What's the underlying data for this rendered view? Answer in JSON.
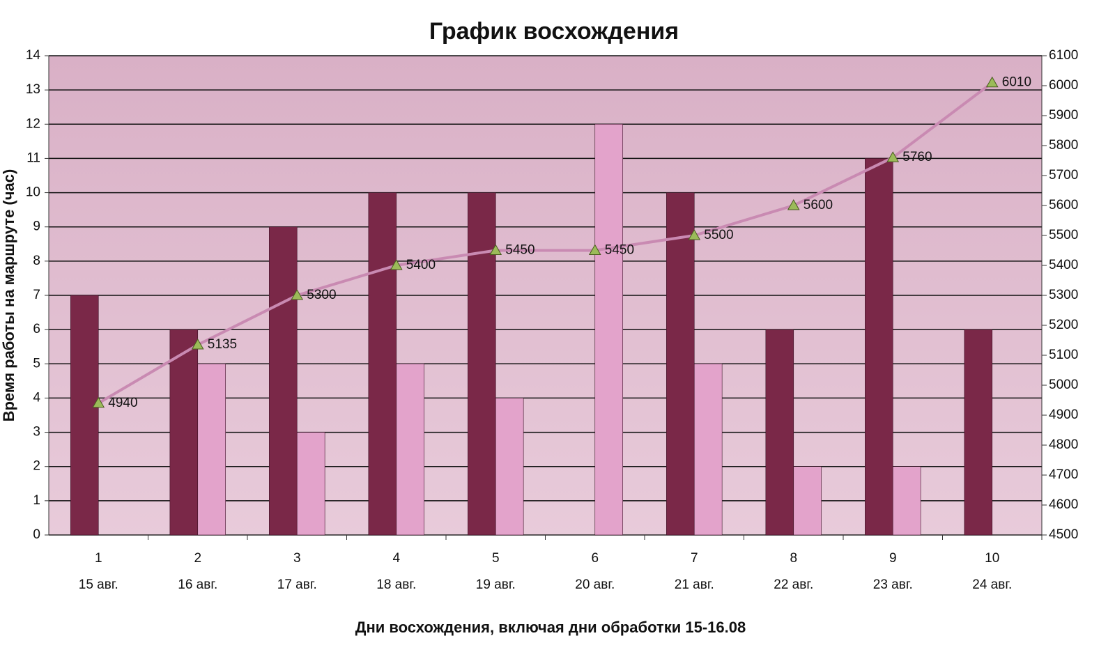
{
  "chart_data": {
    "type": "bar-line",
    "title": "График восхождения",
    "x_label": "Дни восхождения, включая дни обработки 15-16.08",
    "y_label": "Время работы на маршруте  (час)",
    "categories": [
      "1",
      "2",
      "3",
      "4",
      "5",
      "6",
      "7",
      "8",
      "9",
      "10"
    ],
    "category_dates": [
      "15 авг.",
      "16 авг.",
      "17 авг.",
      "18 авг.",
      "19 авг.",
      "20 авг.",
      "21 авг.",
      "22 авг.",
      "23 авг.",
      "24 авг."
    ],
    "series": [
      {
        "type": "bar",
        "color": "#7a2848",
        "values": [
          7,
          6,
          9,
          10,
          10,
          null,
          10,
          6,
          11,
          6
        ]
      },
      {
        "type": "bar",
        "color": "#e3a3cb",
        "values": [
          null,
          5,
          3,
          5,
          4,
          12,
          5,
          2,
          2,
          null
        ]
      },
      {
        "type": "line",
        "axis": "y2",
        "color": "#c98ab2",
        "marker_color": "#9bbb59",
        "values": [
          4940,
          5135,
          5300,
          5400,
          5450,
          5450,
          5500,
          5600,
          5760,
          6010
        ]
      }
    ],
    "ylim": [
      0,
      14
    ],
    "yticks": [
      0,
      1,
      2,
      3,
      4,
      5,
      6,
      7,
      8,
      9,
      10,
      11,
      12,
      13,
      14
    ],
    "y2lim": [
      4500,
      6100
    ],
    "y2ticks": [
      4500,
      4600,
      4700,
      4800,
      4900,
      5000,
      5100,
      5200,
      5300,
      5400,
      5500,
      5600,
      5700,
      5800,
      5900,
      6000,
      6100
    ],
    "grid": true
  }
}
